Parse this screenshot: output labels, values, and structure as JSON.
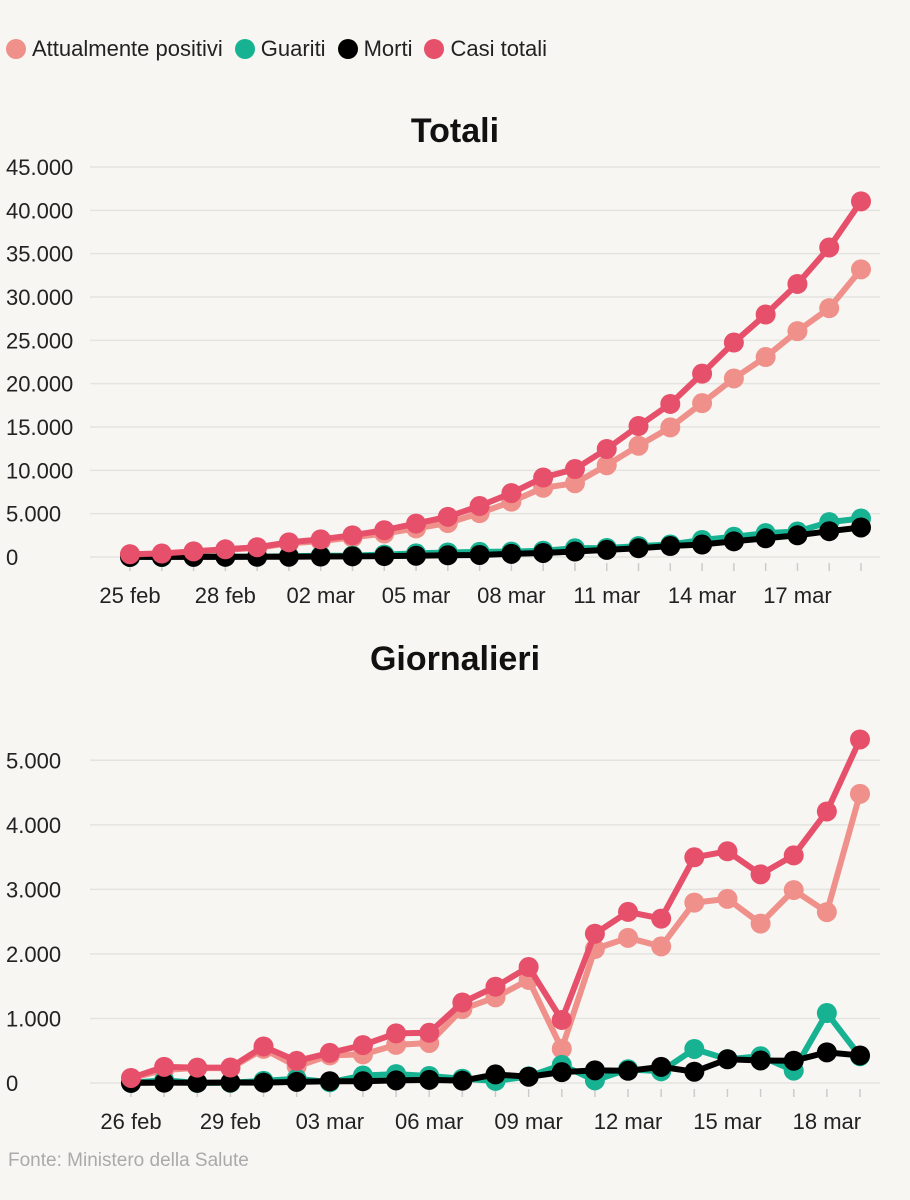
{
  "legend": [
    {
      "label": "Attualmente positivi",
      "color": "#f0908a"
    },
    {
      "label": "Guariti",
      "color": "#16b292"
    },
    {
      "label": "Morti",
      "color": "#000000"
    },
    {
      "label": "Casi totali",
      "color": "#e6506a"
    }
  ],
  "source": "Fonte: Ministero della Salute",
  "chart_data": [
    {
      "type": "line",
      "title": "Totali",
      "xlabel": "",
      "ylabel": "",
      "ylim": [
        0,
        45000
      ],
      "yticks": [
        0,
        5000,
        10000,
        15000,
        20000,
        25000,
        30000,
        35000,
        40000,
        45000
      ],
      "ytick_labels": [
        "0",
        "5.000",
        "10.000",
        "15.000",
        "20.000",
        "25.000",
        "30.000",
        "35.000",
        "40.000",
        "45.000"
      ],
      "grid": true,
      "legend_position": "top-left",
      "x": [
        "25 feb",
        "26 feb",
        "27 feb",
        "28 feb",
        "29 feb",
        "01 mar",
        "02 mar",
        "03 mar",
        "04 mar",
        "05 mar",
        "06 mar",
        "07 mar",
        "08 mar",
        "09 mar",
        "10 mar",
        "11 mar",
        "12 mar",
        "13 mar",
        "14 mar",
        "15 mar",
        "16 mar",
        "17 mar",
        "18 mar",
        "19 mar"
      ],
      "xtick_labels": [
        "25 feb",
        "28 feb",
        "02 mar",
        "05 mar",
        "08 mar",
        "11 mar",
        "14 mar",
        "17 mar"
      ],
      "series": [
        {
          "name": "Attualmente positivi",
          "color": "#f0908a",
          "values": [
            311,
            385,
            588,
            821,
            1049,
            1577,
            1835,
            2263,
            2706,
            3296,
            3916,
            5061,
            6387,
            7985,
            8514,
            10590,
            12839,
            14955,
            17750,
            20603,
            23073,
            26062,
            28710,
            33190
          ]
        },
        {
          "name": "Guariti",
          "color": "#16b292",
          "values": [
            1,
            3,
            45,
            46,
            50,
            83,
            149,
            160,
            276,
            414,
            523,
            589,
            622,
            724,
            1004,
            1045,
            1258,
            1439,
            1966,
            2335,
            2749,
            2941,
            4025,
            4440
          ]
        },
        {
          "name": "Morti",
          "color": "#000000",
          "values": [
            10,
            12,
            17,
            21,
            29,
            34,
            52,
            79,
            107,
            148,
            197,
            233,
            366,
            463,
            631,
            827,
            1016,
            1266,
            1441,
            1809,
            2158,
            2503,
            2978,
            3405
          ]
        },
        {
          "name": "Casi totali",
          "color": "#e6506a",
          "values": [
            322,
            400,
            650,
            888,
            1128,
            1694,
            2036,
            2502,
            3089,
            3858,
            4636,
            5883,
            7375,
            9172,
            10149,
            12462,
            15113,
            17660,
            21157,
            24747,
            27980,
            31506,
            35713,
            41035
          ]
        }
      ]
    },
    {
      "type": "line",
      "title": "Giornalieri",
      "xlabel": "",
      "ylabel": "",
      "ylim": [
        0,
        5500
      ],
      "yticks": [
        0,
        1000,
        2000,
        3000,
        4000,
        5000
      ],
      "ytick_labels": [
        "0",
        "1.000",
        "2.000",
        "3.000",
        "4.000",
        "5.000"
      ],
      "grid": true,
      "x": [
        "26 feb",
        "27 feb",
        "28 feb",
        "29 feb",
        "01 mar",
        "02 mar",
        "03 mar",
        "04 mar",
        "05 mar",
        "06 mar",
        "07 mar",
        "08 mar",
        "09 mar",
        "10 mar",
        "11 mar",
        "12 mar",
        "13 mar",
        "14 mar",
        "15 mar",
        "16 mar",
        "17 mar",
        "18 mar",
        "19 mar"
      ],
      "xtick_labels": [
        "26 feb",
        "29 feb",
        "03 mar",
        "06 mar",
        "09 mar",
        "12 mar",
        "15 mar",
        "18 mar"
      ],
      "series": [
        {
          "name": "Attualmente positivi",
          "color": "#f0908a",
          "values": [
            74,
            203,
            233,
            228,
            528,
            258,
            428,
            443,
            590,
            620,
            1145,
            1326,
            1598,
            529,
            2076,
            2249,
            2116,
            2795,
            2853,
            2470,
            2989,
            2648,
            4480
          ]
        },
        {
          "name": "Guariti",
          "color": "#16b292",
          "values": [
            2,
            42,
            1,
            4,
            33,
            66,
            11,
            116,
            138,
            109,
            66,
            33,
            102,
            280,
            41,
            213,
            181,
            527,
            369,
            414,
            192,
            1084,
            415
          ]
        },
        {
          "name": "Morti",
          "color": "#000000",
          "values": [
            2,
            5,
            4,
            8,
            5,
            18,
            27,
            28,
            41,
            49,
            36,
            133,
            97,
            168,
            196,
            189,
            250,
            175,
            368,
            349,
            345,
            475,
            427
          ]
        },
        {
          "name": "Casi totali",
          "color": "#e6506a",
          "values": [
            78,
            250,
            238,
            240,
            566,
            342,
            466,
            587,
            769,
            778,
            1247,
            1492,
            1797,
            977,
            2313,
            2651,
            2547,
            3497,
            3590,
            3233,
            3526,
            4207,
            5322
          ]
        }
      ]
    }
  ]
}
